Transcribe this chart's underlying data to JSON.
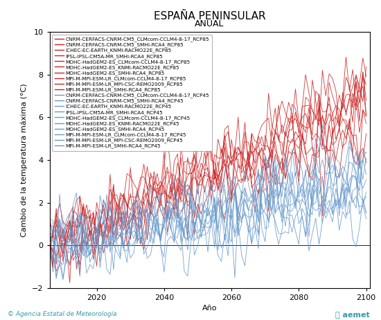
{
  "title": "ESPAÑA PENINSULAR",
  "subtitle": "ANUAL",
  "xlabel": "Año",
  "ylabel": "Cambio de la temperatura máxima (°C)",
  "xlim": [
    2006,
    2101
  ],
  "ylim": [
    -2,
    10
  ],
  "yticks": [
    -2,
    0,
    2,
    4,
    6,
    8,
    10
  ],
  "xticks": [
    2020,
    2040,
    2060,
    2080,
    2100
  ],
  "rcp85_color": "#CC2222",
  "rcp45_color": "#6699CC",
  "rcp85_labels": [
    "CNRM-CERFACS-CNRM-CM5_CLMcom-CCLM4-8-17_RCP85",
    "CNRM-CERFACS-CNRM-CM5_SMHI-RCA4_RCP85",
    "ICHEC-EC-EARTH_KNMI-RACMO22E_RCP85",
    "IPSL-IPSL-CM5A-MR_SMHI-RCA4_RCP85",
    "MOHC-HadGEM2-ES_CLMcom-CCLM4-8-17_RCP85",
    "MOHC-HadGEM2-ES_KNMI-RACMO22E_RCP85",
    "MOHC-HadGEM2-ES_SMHI-RCA4_RCP85",
    "MPI-M-MPI-ESM-LR_CLMcom-CCLM4-8-17_RCP85",
    "MPI-M-MPI-ESM-LR_MPI-CSC-REMO2009_RCP85",
    "MPI-M-MPI-ESM-LR_SMHI-RCA4_RCP85"
  ],
  "rcp45_labels": [
    "CNRM-CERFACS-CNRM-CM5_CLMcom-CCLM4-8-17_RCP45",
    "CNRM-CERFACS-CNRM-CM5_SMHI-RCA4_RCP45",
    "ICHEC-EC-EARTH_KNMI-RACMO22E_RCP45",
    "IPSL-IPSL-CM5A-MR_SMHI-RCA4_RCP45",
    "MOHC-HadGEM2-ES_CLMcom-CCLM4-8-17_RCP45",
    "MOHC-HadGEM2-ES_KNMI-RACMO22E_RCP45",
    "MOHC-HadGEM2-ES_SMHI-RCA4_RCP45",
    "MPI-M-MPI-ESM-LR_CLMcom-CCLM4-8-17_RCP45",
    "MPI-M-MPI-ESM-LR_MPI-CSC-REMO2009_RCP45",
    "MPI-M-MPI-ESM-LR_SMHI-RCA4_RCP45"
  ],
  "start_year": 2006,
  "end_year": 2100,
  "rcp85_trends": [
    4.8,
    5.2,
    5.8,
    6.2,
    6.5,
    6.8,
    7.0,
    7.2,
    7.5,
    7.8
  ],
  "rcp45_trends": [
    1.8,
    2.0,
    2.2,
    2.5,
    2.7,
    2.9,
    3.1,
    3.3,
    3.5,
    3.7
  ],
  "noise_std": 0.85,
  "ar1_coef": 0.3,
  "legend_fontsize": 5.2,
  "title_fontsize": 11,
  "subtitle_fontsize": 9,
  "axis_label_fontsize": 8,
  "tick_fontsize": 8,
  "footer_color": "#3399AA",
  "footer_text": "Agencia Estatal de Meteorología"
}
